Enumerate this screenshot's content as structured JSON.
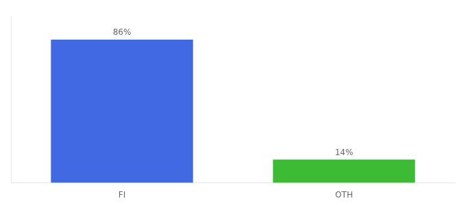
{
  "chart_data": {
    "type": "bar",
    "categories": [
      "FI",
      "OTH"
    ],
    "values": [
      86,
      14
    ],
    "value_labels": [
      "86%",
      "14%"
    ],
    "colors": [
      "#4169e1",
      "#3dbb35"
    ],
    "ylim": [
      0,
      100
    ],
    "data_labels": true,
    "tick_labels": "x",
    "grid": false
  }
}
